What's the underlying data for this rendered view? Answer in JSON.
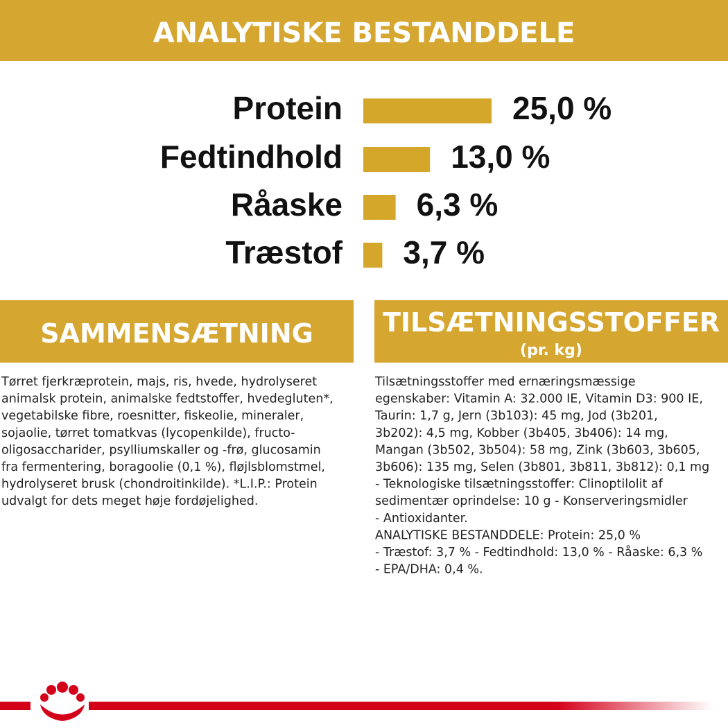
{
  "header": {
    "title": "ANALYTISKE BESTANDDELE"
  },
  "chart_data": {
    "type": "bar",
    "orientation": "horizontal",
    "color": "#d4a62a",
    "categories": [
      "Protein",
      "Fedtindhold",
      "Råaske",
      "Træstof"
    ],
    "values": [
      25.0,
      13.0,
      6.3,
      3.7
    ],
    "value_labels": [
      "25,0 %",
      "13,0 %",
      "6,3 %",
      "3,7 %"
    ]
  },
  "composition": {
    "title": "SAMMENSÆTNING",
    "lines": [
      "Tørret fjerkræprotein, majs, ris, hvede, hydrolyseret",
      "animalsk protein, animalske fedtstoffer, hvedegluten*,",
      "vegetabilske fibre, roesnitter, fiskeolie, mineraler,",
      "sojaolie, tørret tomatkvas (lycopenkilde), fructo-",
      "oligosaccharider, psylliumskaller og -frø, glucosamin",
      "fra fermentering, boragoolie (0,1 %), fløjlsblomstmel,",
      "hydrolyseret brusk (chondroitinkilde). *L.I.P.: Protein",
      "udvalgt for dets meget høje fordøjelighed."
    ]
  },
  "additives": {
    "title": "TILSÆTNINGSSTOFFER",
    "subtitle": "(pr. kg)",
    "lines": [
      "Tilsætningsstoffer med ernæringsmæssige",
      "egenskaber: Vitamin A: 32.000 IE, Vitamin D3: 900 IE,",
      "Taurin: 1,7 g, Jern (3b103): 45 mg, Jod (3b201,",
      "3b202): 4,5 mg, Kobber (3b405, 3b406): 14 mg,",
      "Mangan (3b502, 3b504): 58 mg, Zink (3b603, 3b605,",
      "3b606): 135 mg, Selen (3b801, 3b811, 3b812): 0,1 mg",
      "- Teknologiske tilsætningsstoffer: Clinoptilolit af",
      "sedimentær oprindelse: 10 g - Konserveringsmidler",
      "- Antioxidanter.",
      "ANALYTISKE BESTANDDELE: Protein: 25,0 %",
      "- Træstof: 3,7 % - Fedtindhold: 13,0 % - Råaske: 6,3 %",
      "- EPA/DHA: 0,4 %."
    ]
  }
}
